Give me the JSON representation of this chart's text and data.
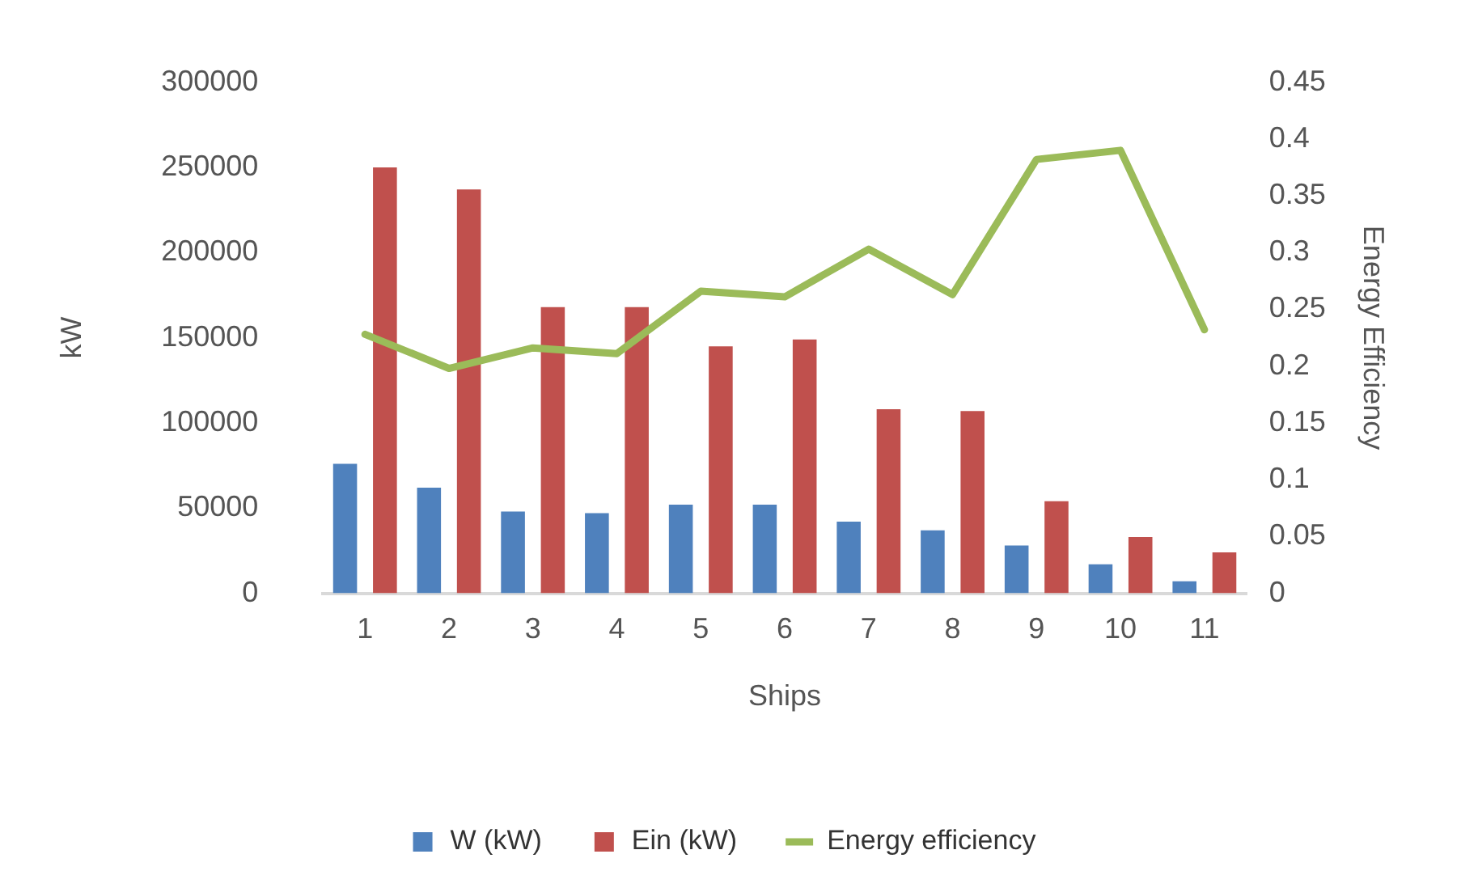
{
  "chart_data": {
    "type": "bar",
    "xlabel": "Ships",
    "ylabel": "kW",
    "y2label": "Energy Efficiency",
    "categories": [
      "1",
      "2",
      "3",
      "4",
      "5",
      "6",
      "7",
      "8",
      "9",
      "10",
      "11"
    ],
    "series": [
      {
        "name": "W (kW)",
        "color": "#4f81bd",
        "values": [
          76000,
          62000,
          48000,
          47000,
          52000,
          52000,
          42000,
          37000,
          28000,
          17000,
          7000
        ]
      },
      {
        "name": "Ein (kW)",
        "color": "#c0504d",
        "values": [
          250000,
          237000,
          168000,
          168000,
          145000,
          149000,
          108000,
          107000,
          54000,
          33000,
          24000
        ]
      },
      {
        "name": "Energy efficiency",
        "type": "line",
        "axis": "y2",
        "color": "#9bbb59",
        "values": [
          0.228,
          0.198,
          0.216,
          0.211,
          0.266,
          0.261,
          0.303,
          0.263,
          0.382,
          0.39,
          0.232
        ]
      }
    ],
    "ylim": [
      0,
      300000
    ],
    "yticks": [
      0,
      50000,
      100000,
      150000,
      200000,
      250000,
      300000
    ],
    "y2lim": [
      0,
      0.45
    ],
    "y2ticks": [
      0,
      0.05,
      0.1,
      0.15,
      0.2,
      0.25,
      0.3,
      0.35,
      0.4,
      0.45
    ],
    "grid": false,
    "legend": "bottom",
    "marker": "none"
  }
}
